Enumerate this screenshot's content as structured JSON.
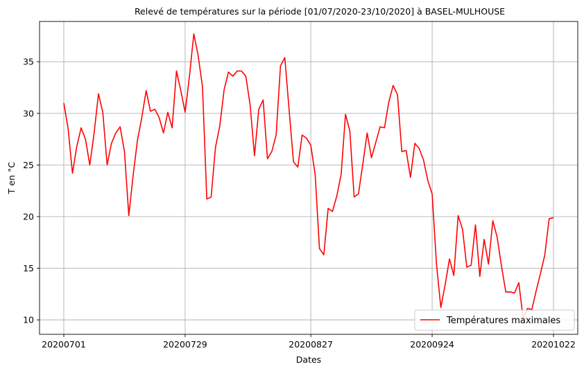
{
  "chart_data": {
    "type": "line",
    "title": "Relevé de températures sur la période [01/07/2020-23/10/2020] à BASEL-MULHOUSE",
    "xlabel": "Dates",
    "ylabel": "T en °C",
    "x_tick_labels": [
      "20200701",
      "20200729",
      "20200827",
      "20200924",
      "20201022"
    ],
    "x_tick_days": [
      0,
      28,
      57,
      85,
      113
    ],
    "y_ticks": [
      10,
      15,
      20,
      25,
      30,
      35
    ],
    "ylim": [
      8.6,
      38.9
    ],
    "xlim": [
      -5.6,
      118.6
    ],
    "grid": true,
    "legend_position": "lower-right",
    "series": [
      {
        "name": "Températures maximales",
        "color": "#ff0000",
        "x": [
          0,
          1,
          2,
          3,
          4,
          5,
          6,
          7,
          8,
          9,
          10,
          11,
          12,
          13,
          14,
          15,
          16,
          17,
          18,
          19,
          20,
          21,
          22,
          23,
          24,
          25,
          26,
          27,
          28,
          29,
          30,
          31,
          32,
          33,
          34,
          35,
          36,
          37,
          38,
          39,
          40,
          41,
          42,
          43,
          44,
          45,
          46,
          47,
          48,
          49,
          50,
          51,
          52,
          53,
          54,
          55,
          56,
          57,
          58,
          59,
          60,
          61,
          62,
          63,
          64,
          65,
          66,
          67,
          68,
          69,
          70,
          71,
          72,
          73,
          74,
          75,
          76,
          77,
          78,
          79,
          80,
          81,
          82,
          83,
          84,
          85,
          86,
          87,
          88,
          89,
          90,
          91,
          92,
          93,
          94,
          95,
          96,
          97,
          98,
          99,
          100,
          101,
          102,
          103,
          104,
          105,
          106,
          107,
          108,
          109,
          110,
          111,
          112,
          113
        ],
        "y": [
          31.0,
          28.5,
          24.2,
          26.8,
          28.6,
          27.5,
          25.0,
          28.1,
          31.9,
          30.1,
          25.0,
          27.1,
          28.1,
          28.7,
          26.3,
          20.1,
          24.0,
          27.4,
          29.6,
          32.2,
          30.2,
          30.4,
          29.6,
          28.1,
          30.1,
          28.6,
          34.1,
          32.2,
          30.1,
          33.6,
          37.7,
          35.6,
          32.6,
          21.7,
          21.9,
          26.7,
          28.8,
          32.3,
          34.0,
          33.6,
          34.1,
          34.1,
          33.6,
          30.8,
          25.9,
          30.4,
          31.3,
          25.6,
          26.3,
          27.9,
          34.6,
          35.4,
          30.3,
          25.3,
          24.8,
          27.9,
          27.6,
          26.9,
          24.1,
          16.9,
          16.3,
          20.8,
          20.5,
          22.0,
          24.1,
          29.9,
          28.3,
          21.9,
          22.2,
          25.1,
          28.1,
          25.7,
          27.2,
          28.7,
          28.6,
          31.1,
          32.7,
          31.8,
          26.3,
          26.4,
          23.8,
          27.1,
          26.6,
          25.5,
          23.5,
          22.2,
          15.4,
          11.2,
          13.4,
          15.9,
          14.3,
          20.1,
          18.8,
          15.1,
          15.3,
          19.2,
          14.2,
          17.8,
          15.4,
          19.6,
          18.0,
          15.2,
          12.7,
          12.7,
          12.6,
          13.6,
          10.1,
          11.1,
          11.0,
          12.8,
          14.5,
          16.3,
          19.8,
          19.9
        ]
      }
    ]
  }
}
